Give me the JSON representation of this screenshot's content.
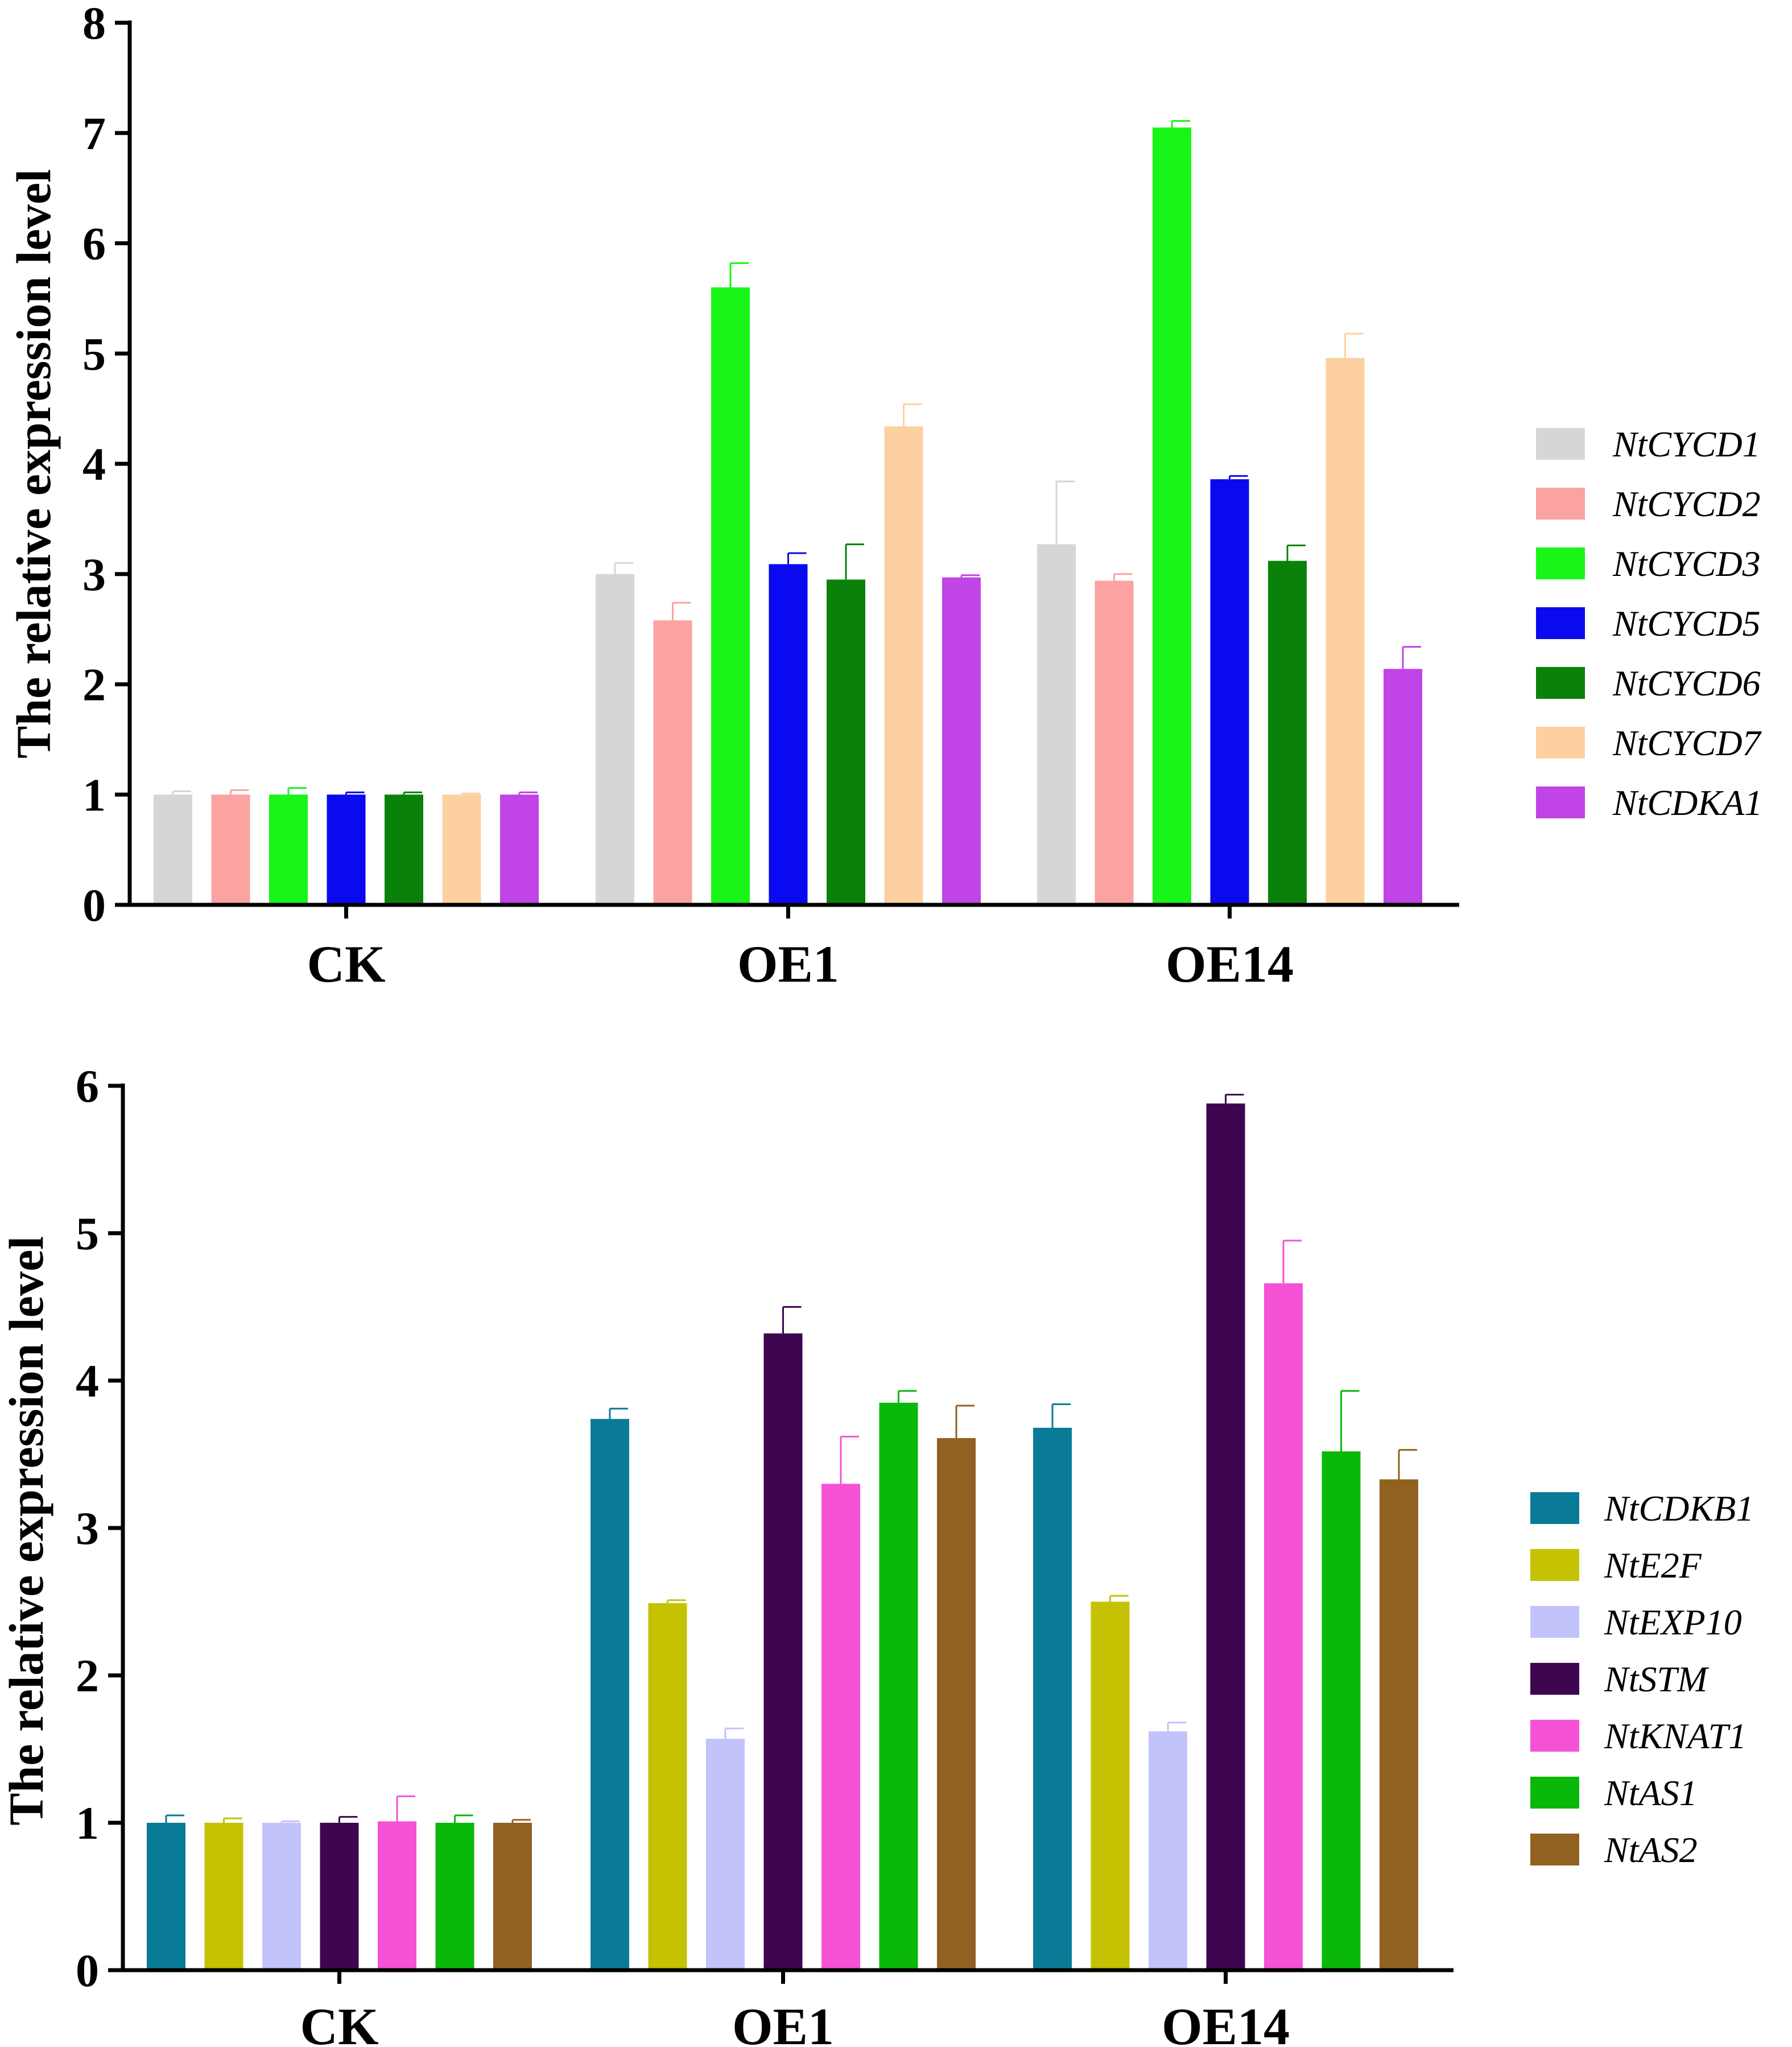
{
  "chart_data": [
    {
      "type": "bar",
      "title": "",
      "xlabel": "",
      "ylabel": "The relative expression level",
      "ylim": [
        0,
        8
      ],
      "yticks": [
        0,
        1,
        2,
        3,
        4,
        5,
        6,
        7,
        8
      ],
      "yticks_text": [
        "0",
        "1",
        "2",
        "3",
        "4",
        "5",
        "6",
        "7",
        "8"
      ],
      "categories": [
        "CK",
        "OE1",
        "OE14"
      ],
      "legend_position": "right",
      "series": [
        {
          "name": "NtCYCD1",
          "color": "#d6d6d6",
          "values": [
            1.0,
            3.0,
            3.27
          ],
          "errors": [
            0.03,
            0.1,
            0.57
          ]
        },
        {
          "name": "NtCYCD2",
          "color": "#fba3a0",
          "values": [
            1.0,
            2.58,
            2.94
          ],
          "errors": [
            0.04,
            0.16,
            0.06
          ]
        },
        {
          "name": "NtCYCD3",
          "color": "#19f519",
          "values": [
            1.0,
            5.6,
            7.05
          ],
          "errors": [
            0.06,
            0.22,
            0.06
          ]
        },
        {
          "name": "NtCYCD5",
          "color": "#0a0af0",
          "values": [
            1.0,
            3.09,
            3.86
          ],
          "errors": [
            0.02,
            0.1,
            0.03
          ]
        },
        {
          "name": "NtCYCD6",
          "color": "#0a820a",
          "values": [
            1.0,
            2.95,
            3.12
          ],
          "errors": [
            0.02,
            0.32,
            0.14
          ]
        },
        {
          "name": "NtCYCD7",
          "color": "#fdd0a2",
          "values": [
            1.0,
            4.34,
            4.96
          ],
          "errors": [
            0.01,
            0.2,
            0.22
          ]
        },
        {
          "name": "NtCDKA1",
          "color": "#c044e6",
          "values": [
            1.0,
            2.97,
            2.14
          ],
          "errors": [
            0.02,
            0.02,
            0.2
          ]
        }
      ]
    },
    {
      "type": "bar",
      "title": "",
      "xlabel": "",
      "ylabel": "The relative expression level",
      "ylim": [
        0,
        6
      ],
      "yticks": [
        0,
        1,
        2,
        3,
        4,
        5,
        6
      ],
      "yticks_text": [
        "0",
        "1",
        "2",
        "3",
        "4",
        "5",
        "6"
      ],
      "categories": [
        "CK",
        "OE1",
        "OE14"
      ],
      "legend_position": "right",
      "series": [
        {
          "name": "NtCDKB1",
          "color": "#0a7b96",
          "values": [
            1.0,
            3.74,
            3.68
          ],
          "errors": [
            0.05,
            0.07,
            0.16
          ]
        },
        {
          "name": "NtE2F",
          "color": "#c4c203",
          "values": [
            1.0,
            2.49,
            2.5
          ],
          "errors": [
            0.03,
            0.02,
            0.04
          ]
        },
        {
          "name": "NtEXP10",
          "color": "#c3c3fb",
          "values": [
            1.0,
            1.57,
            1.62
          ],
          "errors": [
            0.01,
            0.07,
            0.06
          ]
        },
        {
          "name": "NtSTM",
          "color": "#3e0550",
          "values": [
            1.0,
            4.32,
            5.88
          ],
          "errors": [
            0.04,
            0.18,
            0.06
          ]
        },
        {
          "name": "NtKNAT1",
          "color": "#f652d6",
          "values": [
            1.01,
            3.3,
            4.66
          ],
          "errors": [
            0.17,
            0.32,
            0.29
          ]
        },
        {
          "name": "NtAS1",
          "color": "#0ab80a",
          "values": [
            1.0,
            3.85,
            3.52
          ],
          "errors": [
            0.05,
            0.08,
            0.41
          ]
        },
        {
          "name": "NtAS2",
          "color": "#916122",
          "values": [
            1.0,
            3.61,
            3.33
          ],
          "errors": [
            0.02,
            0.22,
            0.2
          ]
        }
      ]
    }
  ]
}
